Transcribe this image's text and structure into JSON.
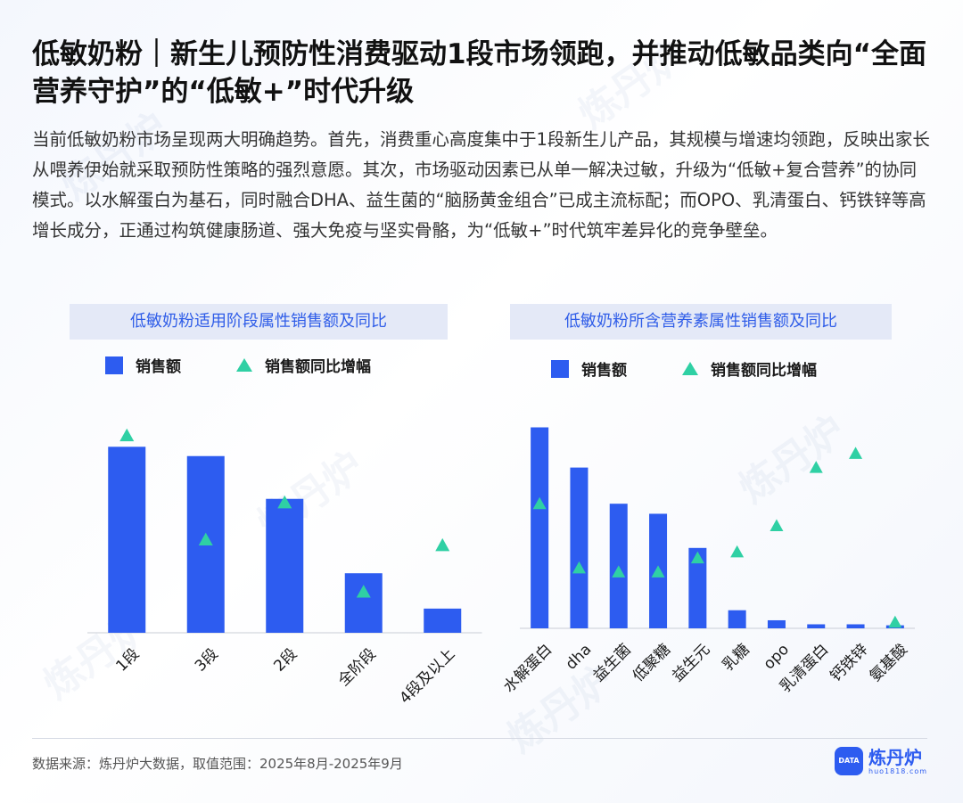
{
  "title": "低敏奶粉｜新生儿预防性消费驱动1段市场领跑，并推动低敏品类向“全面营养守护”的“低敏+”时代升级",
  "description": "当前低敏奶粉市场呈现两大明确趋势。首先，消费重心高度集中于1段新生儿产品，其规模与增速均领跑，反映出家长从喂养伊始就采取预防性策略的强烈意愿。其次，市场驱动因素已从单一解决过敏，升级为“低敏+复合营养”的协同模式。以水解蛋白为基石，同时融合DHA、益生菌的“脑肠黄金组合”已成主流标配；而OPO、乳清蛋白、钙铁锌等高增长成分，正通过构筑健康肠道、强大免疫与坚实骨骼，为“低敏+”时代筑牢差异化的竞争壁垒。",
  "legend": {
    "bar_label": "销售额",
    "marker_label": "销售额同比增幅"
  },
  "colors": {
    "bar": "#2d5cf0",
    "marker": "#2fd0a4",
    "header_bg": "#e4e9f7",
    "header_text": "#2f5de8"
  },
  "chart_data": [
    {
      "type": "bar",
      "title": "低敏奶粉适用阶段属性销售额及同比",
      "categories": [
        "1段",
        "3段",
        "2段",
        "全阶段",
        "4段及以上"
      ],
      "series": [
        {
          "name": "销售额",
          "values": [
            100,
            95,
            72,
            32,
            13
          ]
        },
        {
          "name": "销售额同比增幅",
          "kind": "marker",
          "values": [
            106,
            50,
            70,
            22,
            47
          ]
        }
      ],
      "ylim": [
        0,
        115
      ],
      "y_axis_shown": false
    },
    {
      "type": "bar",
      "title": "低敏奶粉所含营养素属性销售额及同比",
      "categories": [
        "水解蛋白",
        "dha",
        "益生菌",
        "低聚糖",
        "益生元",
        "乳糖",
        "opo",
        "乳清蛋白",
        "钙铁锌",
        "氨基酸"
      ],
      "series": [
        {
          "name": "销售额",
          "values": [
            100,
            80,
            62,
            57,
            40,
            9,
            4,
            2,
            2,
            1.5
          ]
        },
        {
          "name": "销售额同比增幅",
          "kind": "marker",
          "values": [
            62,
            30,
            28,
            28,
            35,
            38,
            51,
            80,
            87,
            3
          ]
        }
      ],
      "ylim": [
        0,
        102
      ],
      "y_axis_shown": false
    }
  ],
  "footer": {
    "source": "数据来源：炼丹炉大数据，取值范围：2025年8月-2025年9月",
    "logo_name": "炼丹炉",
    "logo_mark": "DATA",
    "logo_url": "huo1818.com"
  }
}
